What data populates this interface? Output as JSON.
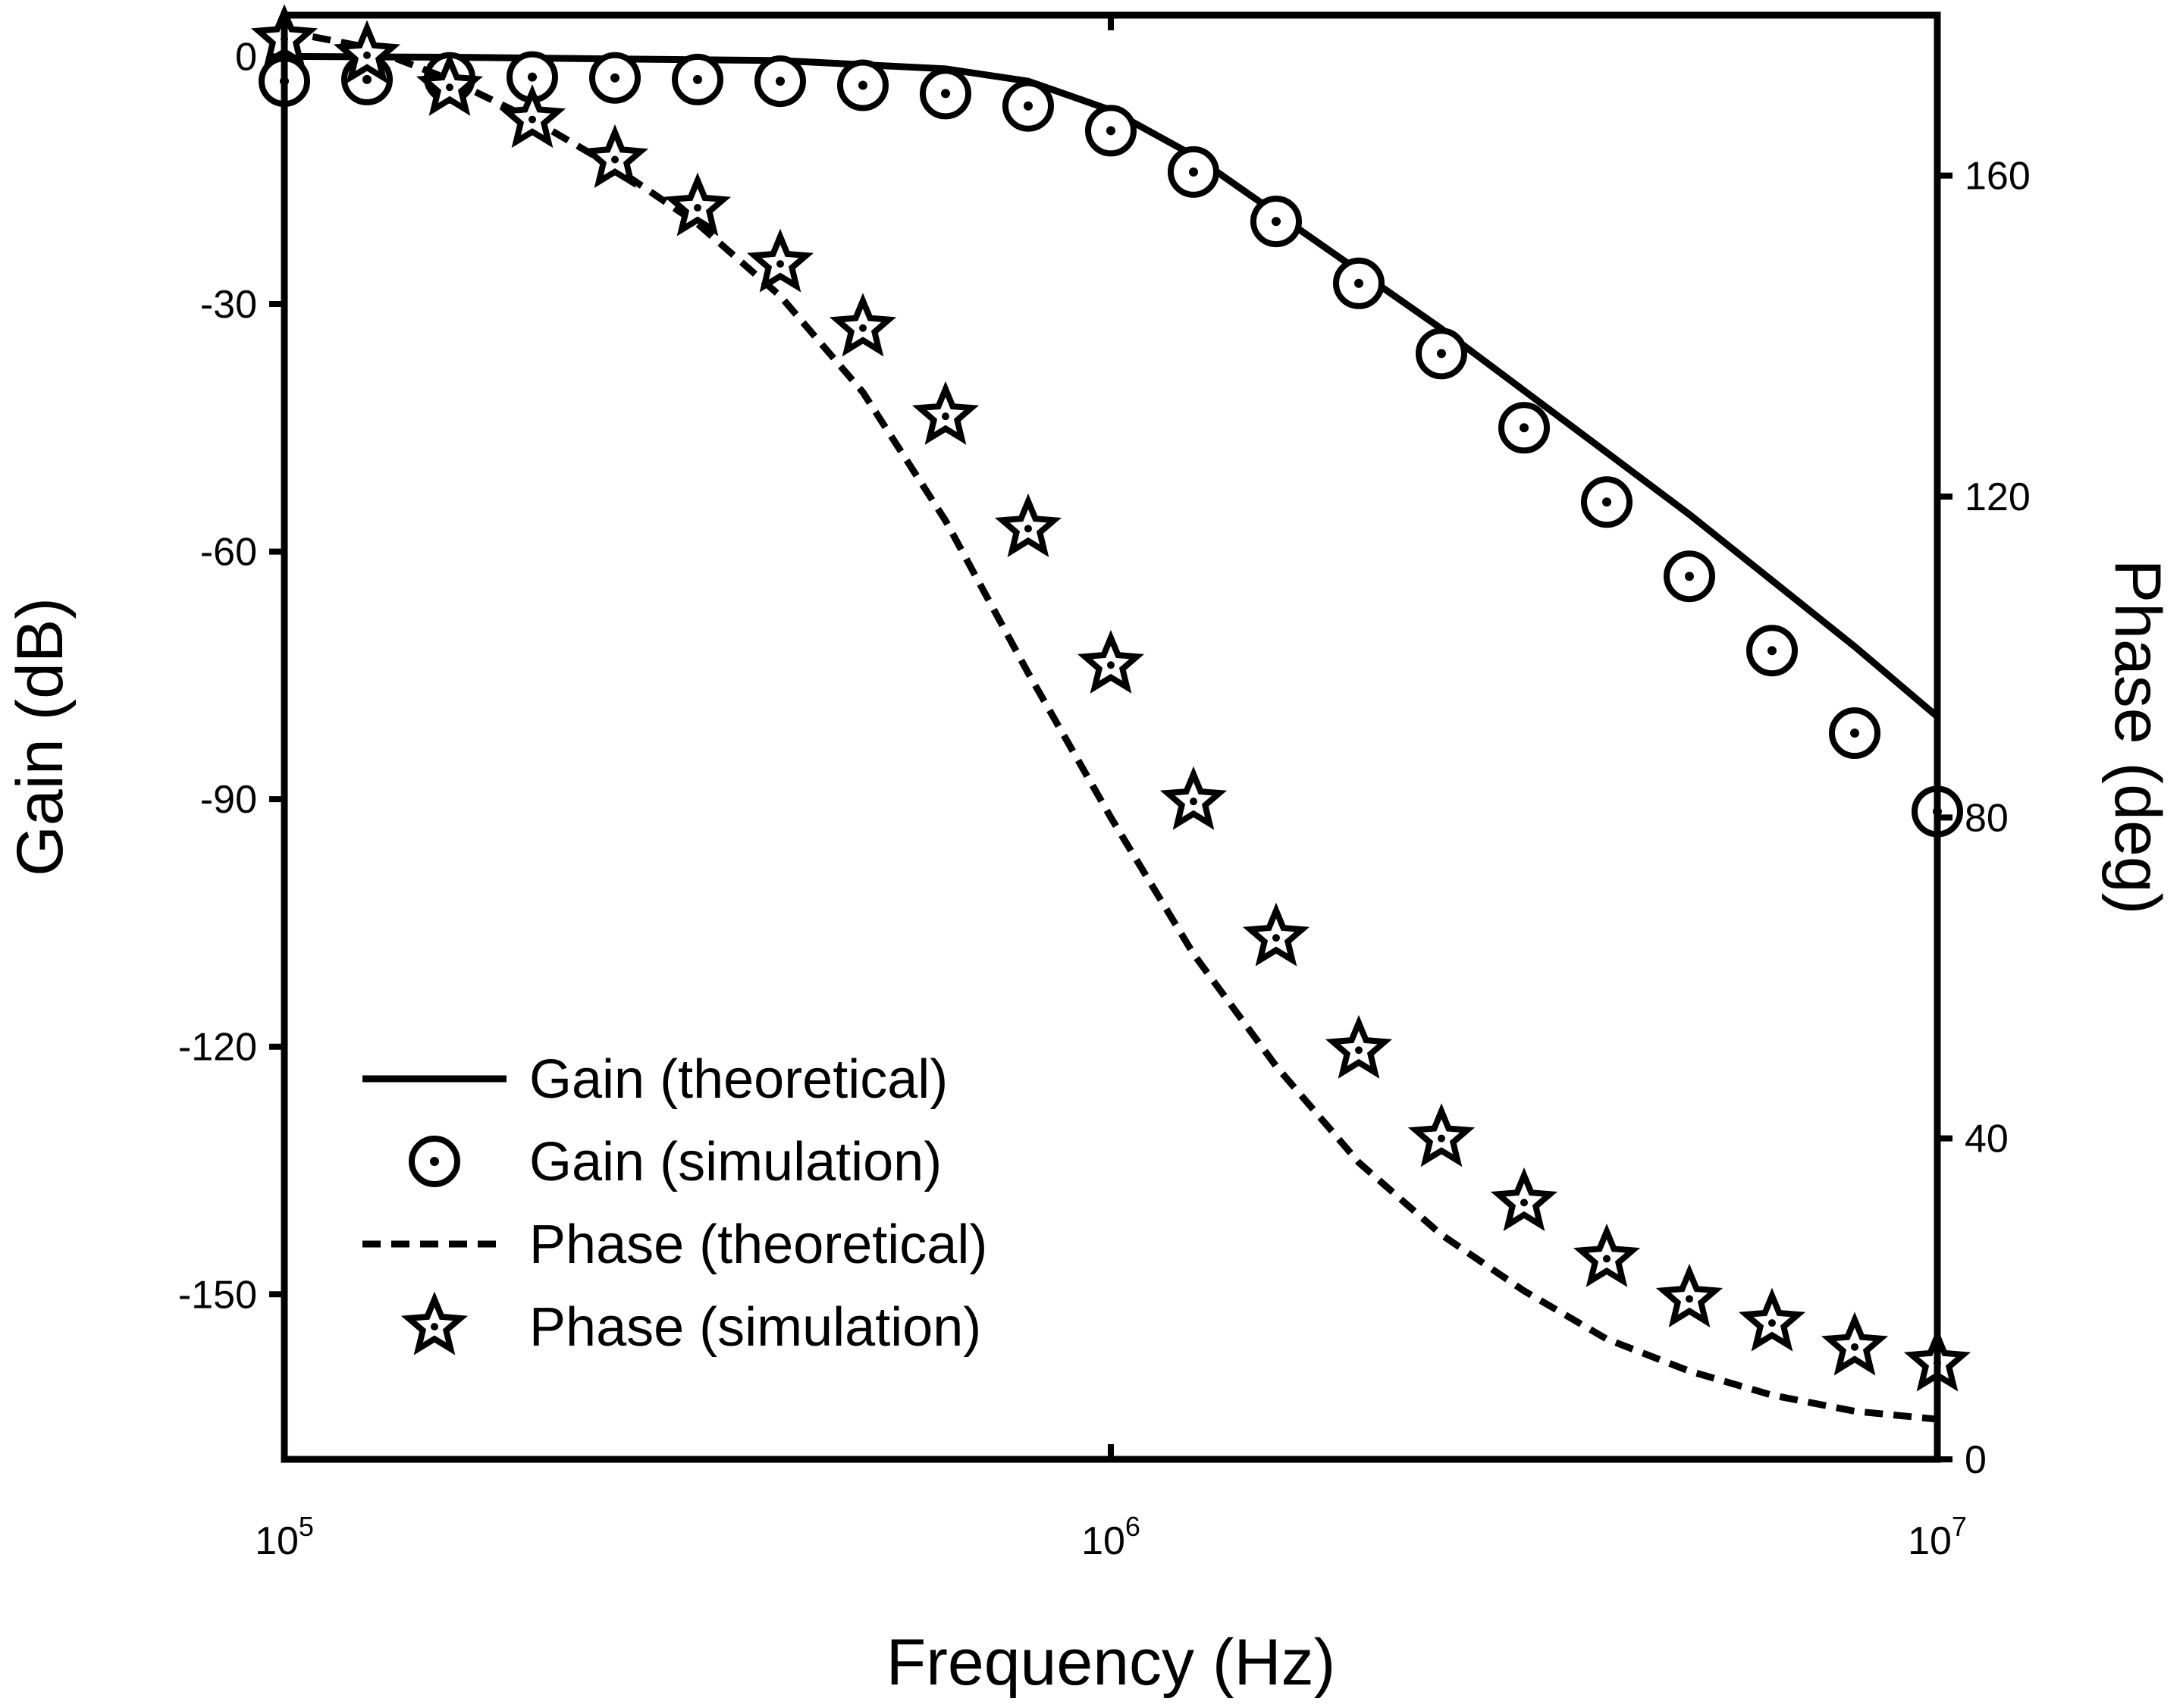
{
  "chart_data": {
    "type": "line",
    "title": "",
    "xlabel": "Frequency (Hz)",
    "ylabel": "Gain (dB)",
    "y2label": "Phase (deg)",
    "xscale": "log",
    "xlim": [
      100000,
      10000000
    ],
    "ylim": [
      -170,
      5
    ],
    "y2lim": [
      0,
      180
    ],
    "x_ticks": [
      {
        "value": 100000,
        "base": "10",
        "exp": "5"
      },
      {
        "value": 1000000,
        "base": "10",
        "exp": "6"
      },
      {
        "value": 10000000,
        "base": "10",
        "exp": "7"
      }
    ],
    "y_ticks": [
      0,
      -30,
      -60,
      -90,
      -120,
      -150
    ],
    "y_tick_labels": [
      "0",
      "-30",
      "-60",
      "-90",
      "-120",
      "-150"
    ],
    "y2_ticks": [
      0,
      40,
      80,
      120,
      160
    ],
    "y2_tick_labels": [
      "0",
      "40",
      "80",
      "120",
      "160"
    ],
    "grid": false,
    "legend_position": "bottom-left",
    "series": [
      {
        "name": "Gain (theoretical)",
        "style": "solid-line",
        "axis": "left",
        "x": [
          100000,
          158489,
          251189,
          398107,
          630957,
          794328,
          1000000,
          1258925,
          1584893,
          1995262,
          2511886,
          3162278,
          3981072,
          5011872,
          6309573,
          7943282,
          10000000
        ],
        "values": [
          0,
          -0.1,
          -0.3,
          -0.5,
          -1.5,
          -3,
          -6.5,
          -12,
          -19,
          -26,
          -33,
          -40.5,
          -48,
          -55.5,
          -63.5,
          -71.5,
          -80
        ]
      },
      {
        "name": "Gain (simulation)",
        "style": "circle-dot-marker",
        "axis": "left",
        "x": [
          100000,
          125893,
          158489,
          199526,
          251189,
          316228,
          398107,
          501187,
          630957,
          794328,
          1000000,
          1258925,
          1584893,
          1995262,
          2511886,
          3162278,
          3981072,
          5011872,
          6309573,
          7943282,
          10000000
        ],
        "values": [
          -3,
          -2.8,
          -2.6,
          -2.5,
          -2.6,
          -2.8,
          -3,
          -3.5,
          -4.5,
          -6,
          -9,
          -14,
          -20,
          -27.5,
          -36,
          -45,
          -54,
          -63,
          -72,
          -82,
          -91.5
        ]
      },
      {
        "name": "Phase (theoretical)",
        "style": "dashed-line",
        "axis": "right",
        "x": [
          100000,
          125893,
          158489,
          199526,
          251189,
          316228,
          398107,
          501187,
          630957,
          794328,
          1000000,
          1258925,
          1584893,
          1995262,
          2511886,
          3162278,
          3981072,
          5011872,
          6309573,
          7943282,
          10000000
        ],
        "values": [
          178,
          176,
          172,
          167,
          161,
          154,
          145,
          133,
          117,
          98,
          80,
          63,
          49,
          37,
          28,
          21,
          15,
          11,
          8,
          6,
          5
        ]
      },
      {
        "name": "Phase (simulation)",
        "style": "star-marker",
        "axis": "right",
        "x": [
          100000,
          125893,
          158489,
          199526,
          251189,
          316228,
          398107,
          501187,
          630957,
          794328,
          1000000,
          1258925,
          1584893,
          1995262,
          2511886,
          3162278,
          3981072,
          5011872,
          6309573,
          7943282,
          10000000
        ],
        "values": [
          177,
          175,
          171,
          167,
          162,
          156,
          149,
          141,
          130,
          116,
          99,
          82,
          65,
          51,
          40,
          32,
          25,
          20,
          17,
          14,
          12
        ]
      }
    ]
  }
}
